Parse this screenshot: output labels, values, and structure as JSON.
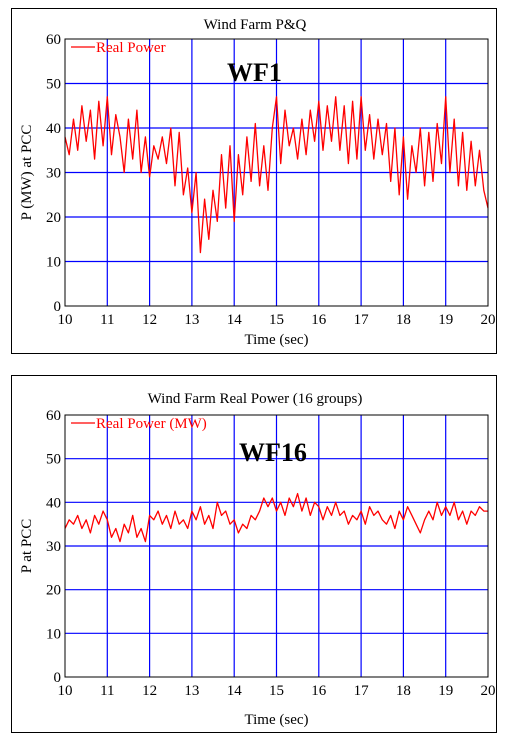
{
  "colors": {
    "grid": "#0000ff",
    "series": "#ff0000",
    "axis": "#000000"
  },
  "chart_data": [
    {
      "type": "line",
      "title": "Wind Farm P&Q",
      "xlabel": "Time (sec)",
      "ylabel": "P (MW) at PCC",
      "xlim": [
        10,
        20
      ],
      "ylim": [
        0,
        60
      ],
      "xticks": [
        10,
        11,
        12,
        13,
        14,
        15,
        16,
        17,
        18,
        19,
        20
      ],
      "yticks": [
        0,
        10,
        20,
        30,
        40,
        50,
        60
      ],
      "grid": true,
      "legend": "top-left",
      "annotation": "WF1",
      "series": [
        {
          "name": "Real Power",
          "x": [
            10.0,
            10.1,
            10.2,
            10.3,
            10.4,
            10.5,
            10.6,
            10.7,
            10.8,
            10.9,
            11.0,
            11.1,
            11.2,
            11.3,
            11.4,
            11.5,
            11.6,
            11.7,
            11.8,
            11.9,
            12.0,
            12.1,
            12.2,
            12.3,
            12.4,
            12.5,
            12.6,
            12.7,
            12.8,
            12.9,
            13.0,
            13.1,
            13.2,
            13.3,
            13.4,
            13.5,
            13.6,
            13.7,
            13.8,
            13.9,
            14.0,
            14.1,
            14.2,
            14.3,
            14.4,
            14.5,
            14.6,
            14.7,
            14.8,
            14.9,
            15.0,
            15.1,
            15.2,
            15.3,
            15.4,
            15.5,
            15.6,
            15.7,
            15.8,
            15.9,
            16.0,
            16.1,
            16.2,
            16.3,
            16.4,
            16.5,
            16.6,
            16.7,
            16.8,
            16.9,
            17.0,
            17.1,
            17.2,
            17.3,
            17.4,
            17.5,
            17.6,
            17.7,
            17.8,
            17.9,
            18.0,
            18.1,
            18.2,
            18.3,
            18.4,
            18.5,
            18.6,
            18.7,
            18.8,
            18.9,
            19.0,
            19.1,
            19.2,
            19.3,
            19.4,
            19.5,
            19.6,
            19.7,
            19.8,
            19.9,
            20.0
          ],
          "values": [
            38,
            34,
            42,
            35,
            45,
            37,
            44,
            33,
            46,
            36,
            47,
            34,
            43,
            38,
            30,
            42,
            33,
            44,
            30,
            38,
            29,
            36,
            33,
            38,
            32,
            40,
            27,
            39,
            25,
            31,
            21,
            30,
            12,
            24,
            15,
            26,
            19,
            34,
            22,
            36,
            19,
            34,
            25,
            38,
            28,
            41,
            27,
            36,
            26,
            40,
            47,
            32,
            44,
            36,
            40,
            33,
            42,
            34,
            44,
            37,
            46,
            35,
            45,
            37,
            47,
            35,
            45,
            32,
            46,
            33,
            47,
            35,
            43,
            33,
            42,
            34,
            41,
            28,
            40,
            25,
            38,
            24,
            36,
            30,
            40,
            27,
            39,
            28,
            41,
            32,
            47,
            30,
            42,
            27,
            39,
            26,
            37,
            27,
            35,
            26,
            22
          ]
        }
      ]
    },
    {
      "type": "line",
      "title": "Wind Farm Real Power (16 groups)",
      "xlabel": "Time (sec)",
      "ylabel": "P at PCC",
      "xlim": [
        10,
        20
      ],
      "ylim": [
        0,
        60
      ],
      "xticks": [
        10,
        11,
        12,
        13,
        14,
        15,
        16,
        17,
        18,
        19,
        20
      ],
      "yticks": [
        0,
        10,
        20,
        30,
        40,
        50,
        60
      ],
      "grid": true,
      "legend": "top-left",
      "annotation": "WF16",
      "series": [
        {
          "name": "Real Power (MW)",
          "x": [
            10.0,
            10.1,
            10.2,
            10.3,
            10.4,
            10.5,
            10.6,
            10.7,
            10.8,
            10.9,
            11.0,
            11.1,
            11.2,
            11.3,
            11.4,
            11.5,
            11.6,
            11.7,
            11.8,
            11.9,
            12.0,
            12.1,
            12.2,
            12.3,
            12.4,
            12.5,
            12.6,
            12.7,
            12.8,
            12.9,
            13.0,
            13.1,
            13.2,
            13.3,
            13.4,
            13.5,
            13.6,
            13.7,
            13.8,
            13.9,
            14.0,
            14.1,
            14.2,
            14.3,
            14.4,
            14.5,
            14.6,
            14.7,
            14.8,
            14.9,
            15.0,
            15.1,
            15.2,
            15.3,
            15.4,
            15.5,
            15.6,
            15.7,
            15.8,
            15.9,
            16.0,
            16.1,
            16.2,
            16.3,
            16.4,
            16.5,
            16.6,
            16.7,
            16.8,
            16.9,
            17.0,
            17.1,
            17.2,
            17.3,
            17.4,
            17.5,
            17.6,
            17.7,
            17.8,
            17.9,
            18.0,
            18.1,
            18.2,
            18.3,
            18.4,
            18.5,
            18.6,
            18.7,
            18.8,
            18.9,
            19.0,
            19.1,
            19.2,
            19.3,
            19.4,
            19.5,
            19.6,
            19.7,
            19.8,
            19.9,
            20.0
          ],
          "values": [
            34,
            36,
            35,
            37,
            34,
            36,
            33,
            37,
            35,
            38,
            36,
            32,
            34,
            31,
            35,
            33,
            37,
            32,
            34,
            31,
            37,
            36,
            38,
            35,
            37,
            34,
            38,
            35,
            36,
            34,
            38,
            36,
            39,
            35,
            37,
            34,
            40,
            37,
            38,
            35,
            36,
            33,
            35,
            34,
            37,
            36,
            38,
            41,
            39,
            41,
            38,
            40,
            37,
            41,
            39,
            42,
            38,
            41,
            37,
            40,
            39,
            36,
            39,
            37,
            40,
            37,
            38,
            35,
            37,
            36,
            38,
            35,
            39,
            37,
            38,
            36,
            35,
            37,
            34,
            38,
            36,
            39,
            37,
            35,
            33,
            36,
            38,
            36,
            40,
            37,
            39,
            37,
            40,
            36,
            38,
            35,
            38,
            37,
            39,
            38,
            38
          ]
        }
      ]
    }
  ]
}
